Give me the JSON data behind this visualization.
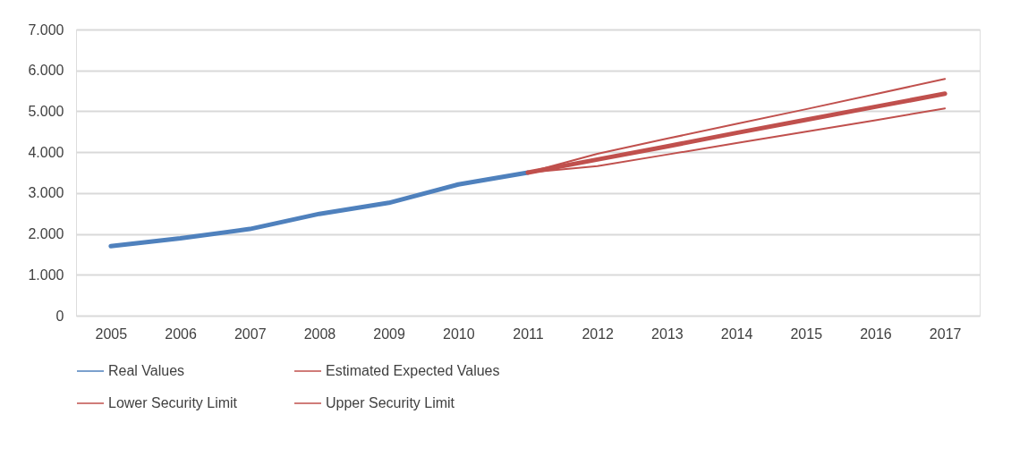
{
  "chart_data": {
    "type": "line",
    "categories": [
      "2005",
      "2006",
      "2007",
      "2008",
      "2009",
      "2010",
      "2011",
      "2012",
      "2013",
      "2014",
      "2015",
      "2016",
      "2017"
    ],
    "series": [
      {
        "name": "Real Values",
        "color": "#4f81bd",
        "values": [
          1700,
          1890,
          2120,
          2490,
          2760,
          3210,
          3500,
          null,
          null,
          null,
          null,
          null,
          null
        ]
      },
      {
        "name": "Estimated Expected Values",
        "color": "#c0504d",
        "values": [
          null,
          null,
          null,
          null,
          null,
          null,
          3500,
          3820,
          4140,
          4470,
          4790,
          5110,
          5430
        ]
      },
      {
        "name": "Lower Security Limit",
        "color": "#c0504d",
        "values": [
          null,
          null,
          null,
          null,
          null,
          null,
          3500,
          3660,
          3940,
          4220,
          4500,
          4780,
          5070
        ]
      },
      {
        "name": "Upper Security Limit",
        "color": "#c0504d",
        "values": [
          null,
          null,
          null,
          null,
          null,
          null,
          3500,
          3960,
          4330,
          4690,
          5050,
          5420,
          5790
        ]
      }
    ],
    "ylim": [
      0,
      7000
    ],
    "yticks": [
      0,
      {
        "value": 1000,
        "label": "1.000"
      },
      {
        "value": 2000,
        "label": "2.000"
      },
      {
        "value": 3000,
        "label": "3.000"
      },
      {
        "value": 4000,
        "label": "4.000"
      },
      {
        "value": 5000,
        "label": "5.000"
      },
      {
        "value": 6000,
        "label": "6.000"
      },
      {
        "value": 7000,
        "label": "7.000"
      }
    ],
    "grid": "y",
    "legend": "bottom",
    "marker": "none",
    "line_style": "solid"
  }
}
